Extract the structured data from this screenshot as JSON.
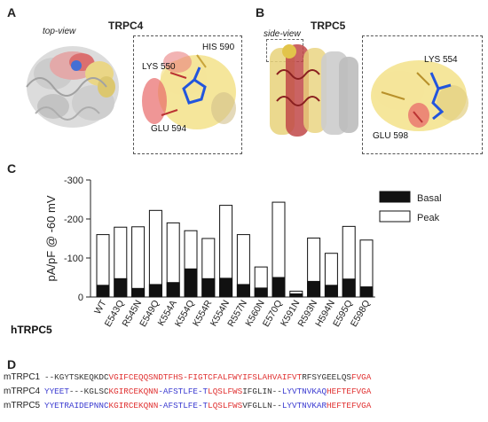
{
  "panelA": {
    "letter": "A",
    "title": "TRPC4",
    "view": "top-view",
    "residues": [
      "LYS 550",
      "HIS 590",
      "GLU 594"
    ]
  },
  "panelB": {
    "letter": "B",
    "title": "TRPC5",
    "view": "side-view",
    "residues": [
      "LYS 554",
      "GLU 598"
    ]
  },
  "panelC": {
    "letter": "C"
  },
  "panelD": {
    "letter": "D"
  },
  "colors": {
    "basal": "#111111",
    "peak": "#ffffff",
    "red": "#e03030",
    "blue": "#3a3ad0",
    "surface_yellow": "#f2dd7a",
    "surface_red": "#e86a6a",
    "ligand_blue": "#2255dd"
  },
  "chart_data": {
    "type": "bar",
    "ylabel": "pA/pF @ -60 mV",
    "xlabel": "hTRPC5",
    "ylim": [
      0,
      -300
    ],
    "yticks": [
      "0",
      "-100",
      "-200",
      "-300"
    ],
    "categories": [
      "WT",
      "E543Q",
      "R545N",
      "E549Q",
      "K554A",
      "K554Q",
      "K554R",
      "K554N",
      "R557N",
      "K560N",
      "E570Q",
      "K591N",
      "R593N",
      "H594N",
      "E595Q",
      "E598Q"
    ],
    "series": [
      {
        "name": "Basal",
        "values": [
          -30,
          -47,
          -22,
          -32,
          -37,
          -72,
          -47,
          -48,
          -32,
          -23,
          -50,
          -8,
          -40,
          -30,
          -46,
          -26
        ]
      },
      {
        "name": "Peak",
        "values": [
          -160,
          -179,
          -180,
          -222,
          -190,
          -170,
          -150,
          -235,
          -160,
          -77,
          -243,
          -15,
          -151,
          -112,
          -181,
          -146
        ]
      }
    ],
    "legend": [
      "Basal",
      "Peak"
    ],
    "legend_position": "top-right",
    "grid": false
  },
  "alignment": {
    "rows": [
      {
        "name": "mTRPC1",
        "segments": [
          {
            "t": "--KGYTSKEQKDC",
            "c": "k"
          },
          {
            "t": "VGIF",
            "c": "r"
          },
          {
            "t": "CEQQS",
            "c": "r"
          },
          {
            "t": "NDTFHS-",
            "c": "r"
          },
          {
            "t": "FIGTCFA",
            "c": "r"
          },
          {
            "t": "LFW",
            "c": "r"
          },
          {
            "t": "YIFSLAHVAI",
            "c": "r"
          },
          {
            "t": "FVT",
            "c": "r"
          },
          {
            "t": "RFSYGEELQS",
            "c": "k"
          },
          {
            "t": "FVGA",
            "c": "r"
          }
        ]
      },
      {
        "name": "mTRPC4",
        "segments": [
          {
            "t": "YYEET",
            "c": "b"
          },
          {
            "t": "---KGLSC",
            "c": "k"
          },
          {
            "t": "KGIRCEKQNN",
            "c": "r"
          },
          {
            "t": "-AFSTLFE-T",
            "c": "b"
          },
          {
            "t": "LQSLFWS",
            "c": "r"
          },
          {
            "t": "IFGLIN--",
            "c": "k"
          },
          {
            "t": "LYVTNVKAQ",
            "c": "b"
          },
          {
            "t": "HEFTE",
            "c": "r"
          },
          {
            "t": "FVGA",
            "c": "r"
          }
        ]
      },
      {
        "name": "mTRPC5",
        "segments": [
          {
            "t": "YYETRAIDEPNNC",
            "c": "b"
          },
          {
            "t": "KGIRCEKQNN",
            "c": "r"
          },
          {
            "t": "-AFSTLFE-T",
            "c": "b"
          },
          {
            "t": "LQSLFWS",
            "c": "r"
          },
          {
            "t": "VFGLLN--",
            "c": "k"
          },
          {
            "t": "LYVTNVKAR",
            "c": "b"
          },
          {
            "t": "HEFTE",
            "c": "r"
          },
          {
            "t": "FVGA",
            "c": "r"
          }
        ]
      }
    ]
  }
}
